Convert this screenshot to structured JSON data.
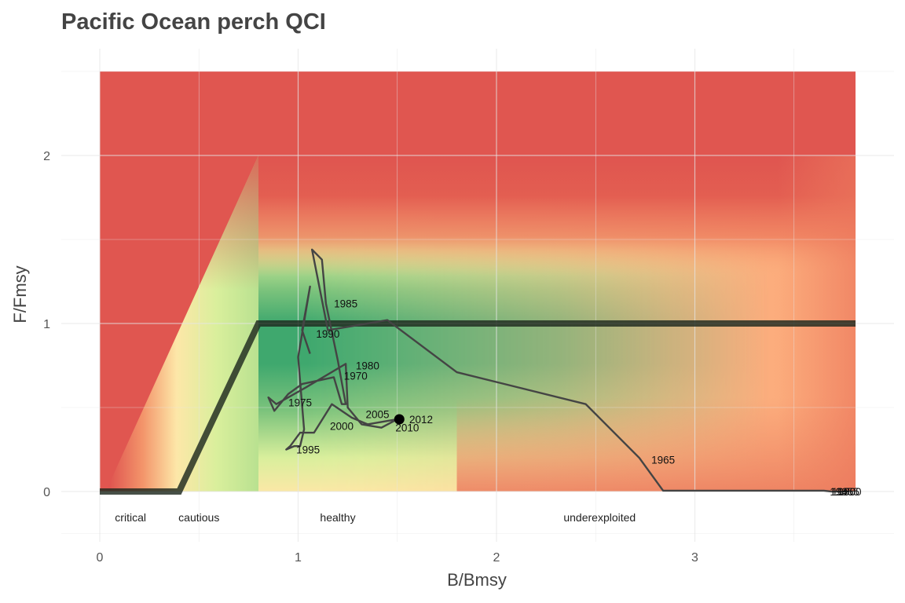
{
  "chart_data": {
    "type": "line",
    "title": "Pacific Ocean perch QCI",
    "xlabel": "B/Bmsy",
    "ylabel": "F/Fmsy",
    "xlim": [
      0,
      4
    ],
    "ylim": [
      -0.3,
      2.6
    ],
    "xticks": [
      0,
      1,
      2,
      3
    ],
    "yticks": [
      0,
      1,
      2
    ],
    "xtick_labels": [
      "0",
      "1",
      "2",
      "3"
    ],
    "ytick_labels": [
      "0",
      "1",
      "2"
    ],
    "grid": true,
    "background": {
      "type": "heatmap",
      "x_range": [
        0,
        3.81
      ],
      "y_range": [
        0,
        2.5
      ],
      "colors": {
        "critical": "#e05650",
        "healthy": "#3fa86e",
        "mid": "#d9ef9c",
        "yellow": "#fbe8a6",
        "orange": "#fdb07c"
      }
    },
    "zone_labels": [
      {
        "text": "critical",
        "x": 0.155
      },
      {
        "text": "cautious",
        "x": 0.5
      },
      {
        "text": "healthy",
        "x": 1.2
      },
      {
        "text": "underexploited",
        "x": 2.52
      }
    ],
    "reference_line": {
      "name": "",
      "color": "#1e2a1e",
      "points": [
        [
          0,
          0
        ],
        [
          0.4,
          0
        ],
        [
          0.8,
          1
        ],
        [
          3.81,
          1
        ]
      ]
    },
    "trajectory": {
      "color": "#444444",
      "points": [
        [
          3.78,
          0.0
        ],
        [
          3.73,
          0.0
        ],
        [
          3.69,
          0.0
        ],
        [
          3.65,
          0.005
        ],
        [
          2.84,
          0.005
        ],
        [
          2.72,
          0.2
        ],
        [
          2.45,
          0.52
        ],
        [
          1.8,
          0.71
        ],
        [
          1.45,
          1.02
        ],
        [
          1.15,
          0.96
        ],
        [
          1.07,
          1.44
        ],
        [
          1.12,
          1.38
        ],
        [
          1.14,
          1.12
        ],
        [
          1.2,
          0.78
        ],
        [
          1.24,
          0.52
        ],
        [
          1.22,
          0.52
        ],
        [
          1.18,
          0.68
        ],
        [
          1.02,
          0.64
        ],
        [
          0.95,
          0.58
        ],
        [
          0.88,
          0.48
        ],
        [
          0.85,
          0.56
        ],
        [
          0.89,
          0.52
        ],
        [
          1.04,
          0.62
        ],
        [
          1.24,
          0.76
        ],
        [
          1.25,
          0.5
        ],
        [
          1.32,
          0.4
        ],
        [
          1.42,
          0.38
        ],
        [
          1.5,
          0.43
        ],
        [
          1.35,
          0.4
        ],
        [
          1.27,
          0.44
        ],
        [
          1.17,
          0.52
        ],
        [
          1.08,
          0.35
        ],
        [
          1.01,
          0.35
        ],
        [
          0.96,
          0.27
        ],
        [
          0.94,
          0.25
        ],
        [
          0.98,
          0.27
        ],
        [
          1.01,
          0.27
        ],
        [
          1.03,
          0.37
        ],
        [
          1.0,
          0.8
        ],
        [
          1.06,
          1.22
        ],
        [
          1.02,
          0.96
        ],
        [
          1.06,
          0.82
        ]
      ],
      "current": {
        "x": 1.51,
        "y": 0.43,
        "year": "2012"
      }
    },
    "year_labels": [
      {
        "text": "1965",
        "x": 2.84,
        "y": 0.19
      },
      {
        "text": "1970",
        "x": 1.29,
        "y": 0.69
      },
      {
        "text": "1975",
        "x": 1.01,
        "y": 0.53
      },
      {
        "text": "1980",
        "x": 1.35,
        "y": 0.75
      },
      {
        "text": "1985",
        "x": 1.24,
        "y": 1.12
      },
      {
        "text": "1990",
        "x": 1.15,
        "y": 0.94
      },
      {
        "text": "1995",
        "x": 1.05,
        "y": 0.25
      },
      {
        "text": "2000",
        "x": 1.22,
        "y": 0.39
      },
      {
        "text": "2005",
        "x": 1.4,
        "y": 0.46
      },
      {
        "text": "2010",
        "x": 1.55,
        "y": 0.38
      },
      {
        "text": "2012",
        "x": 1.62,
        "y": 0.43
      },
      {
        "text": "1945",
        "x": 3.74,
        "y": 0.0
      },
      {
        "text": "1950",
        "x": 3.75,
        "y": 0.0
      },
      {
        "text": "1955",
        "x": 3.77,
        "y": 0.0
      },
      {
        "text": "1960",
        "x": 3.78,
        "y": 0.0
      }
    ]
  }
}
